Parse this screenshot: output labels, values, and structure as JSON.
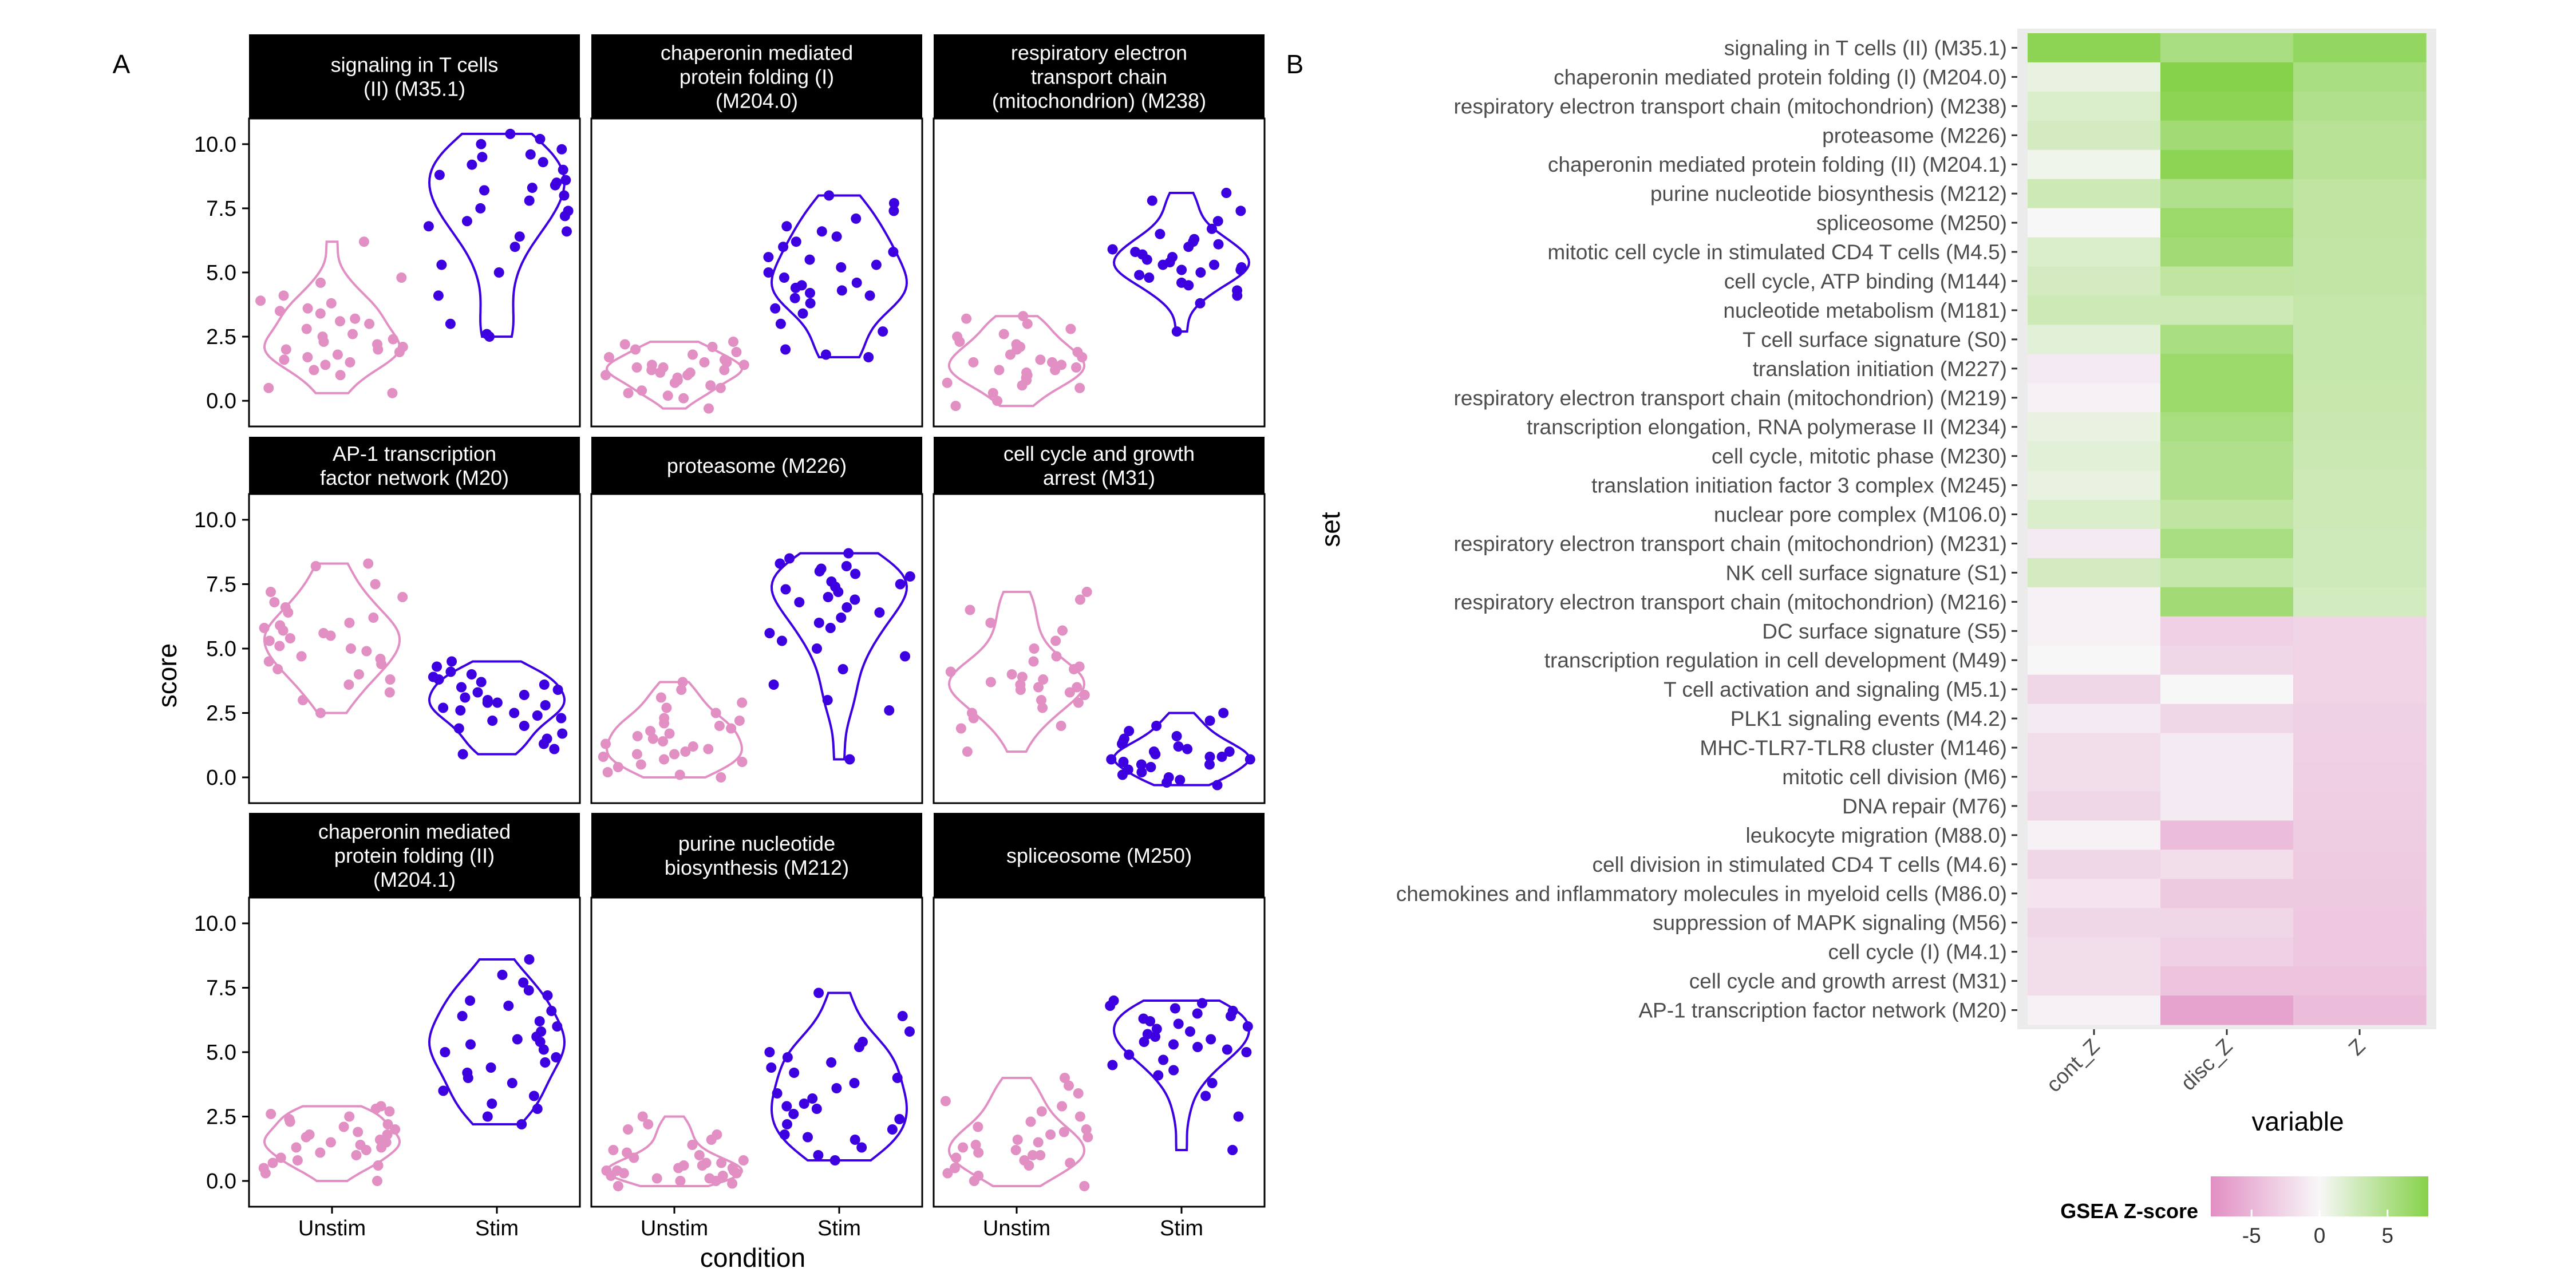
{
  "panel_labels": {
    "a": "A",
    "b": "B"
  },
  "colors": {
    "unstim": "#e28fc4",
    "stim": "#3d00e0",
    "heat_low": "#e28fc4",
    "heat_mid": "#f7f7f7",
    "heat_high": "#86d24a",
    "strip_bg": "#000000",
    "strip_text": "#ffffff",
    "heat_panel_bg": "#ebebeb"
  },
  "chart_data": [
    {
      "type": "violin-strip",
      "ylabel": "score",
      "xlabel": "condition",
      "categories": [
        "Unstim",
        "Stim"
      ],
      "ylim": [
        -1.0,
        11.0
      ],
      "yticks": [
        "0.0",
        "2.5",
        "5.0",
        "7.5",
        "10.0"
      ],
      "ytick_values": [
        0,
        2.5,
        5,
        7.5,
        10
      ],
      "facets": [
        {
          "title_lines": [
            "signaling in T cells",
            "(II) (M35.1)"
          ],
          "series": [
            {
              "name": "Unstim",
              "values": [
                0.3,
                0.5,
                1.0,
                1.2,
                1.4,
                1.5,
                1.6,
                1.7,
                1.8,
                1.9,
                2.0,
                2.0,
                2.1,
                2.2,
                2.3,
                2.4,
                2.5,
                2.6,
                2.8,
                3.0,
                3.1,
                3.2,
                3.4,
                3.5,
                3.6,
                3.8,
                3.9,
                4.1,
                4.6,
                4.8,
                6.2
              ]
            },
            {
              "name": "Stim",
              "values": [
                2.5,
                2.6,
                3.0,
                4.1,
                5.0,
                5.3,
                6.0,
                6.4,
                6.6,
                7.0,
                7.2,
                7.5,
                7.8,
                8.0,
                8.2,
                8.4,
                8.5,
                8.6,
                8.8,
                9.0,
                9.2,
                9.3,
                9.5,
                9.6,
                9.8,
                10.0,
                10.2,
                10.4,
                7.4,
                8.3,
                6.8
              ]
            }
          ]
        },
        {
          "title_lines": [
            "chaperonin mediated",
            "protein folding (I)",
            "(M204.0)"
          ],
          "series": [
            {
              "name": "Unstim",
              "values": [
                -0.3,
                0.1,
                0.2,
                0.4,
                0.5,
                0.6,
                0.7,
                0.8,
                0.9,
                1.0,
                1.0,
                1.1,
                1.1,
                1.2,
                1.2,
                1.3,
                1.3,
                1.4,
                1.5,
                1.5,
                1.6,
                1.7,
                1.8,
                1.9,
                2.0,
                2.1,
                2.2,
                2.3,
                0.3,
                1.4
              ]
            },
            {
              "name": "Stim",
              "values": [
                1.7,
                1.8,
                2.0,
                2.7,
                3.0,
                3.4,
                3.6,
                3.8,
                4.0,
                4.1,
                4.2,
                4.3,
                4.4,
                4.5,
                4.6,
                4.8,
                5.0,
                5.2,
                5.3,
                5.5,
                5.6,
                5.8,
                6.0,
                6.2,
                6.4,
                6.6,
                6.8,
                7.1,
                7.4,
                7.7,
                8.0
              ]
            }
          ]
        },
        {
          "title_lines": [
            "respiratory electron",
            "transport chain",
            "(mitochondrion) (M238)"
          ],
          "series": [
            {
              "name": "Unstim",
              "values": [
                -0.2,
                0.0,
                0.3,
                0.5,
                0.6,
                0.8,
                0.9,
                1.0,
                1.1,
                1.2,
                1.3,
                1.4,
                1.5,
                1.5,
                1.6,
                1.7,
                1.8,
                1.9,
                2.0,
                2.1,
                2.2,
                2.3,
                2.5,
                2.6,
                2.8,
                3.0,
                3.2,
                3.3,
                1.2,
                0.7
              ]
            },
            {
              "name": "Stim",
              "values": [
                2.7,
                3.8,
                4.1,
                4.3,
                4.5,
                4.6,
                4.8,
                4.9,
                5.0,
                5.1,
                5.2,
                5.3,
                5.3,
                5.4,
                5.5,
                5.6,
                5.7,
                5.8,
                5.9,
                6.0,
                6.1,
                6.2,
                6.3,
                6.5,
                6.7,
                7.0,
                7.4,
                7.8,
                8.1,
                5.1
              ]
            }
          ]
        },
        {
          "title_lines": [
            "AP-1 transcription",
            "factor network (M20)"
          ],
          "series": [
            {
              "name": "Unstim",
              "values": [
                2.5,
                3.0,
                3.3,
                3.6,
                3.8,
                4.0,
                4.2,
                4.4,
                4.5,
                4.7,
                4.9,
                5.0,
                5.1,
                5.3,
                5.4,
                5.5,
                5.6,
                5.7,
                5.8,
                5.9,
                6.0,
                6.2,
                6.4,
                6.6,
                6.8,
                7.0,
                7.2,
                7.5,
                8.2,
                8.3,
                4.6
              ]
            },
            {
              "name": "Stim",
              "values": [
                0.9,
                1.1,
                1.3,
                1.5,
                1.7,
                1.9,
                2.0,
                2.2,
                2.3,
                2.4,
                2.5,
                2.6,
                2.7,
                2.8,
                2.9,
                3.0,
                3.1,
                3.2,
                3.3,
                3.4,
                3.5,
                3.6,
                3.7,
                3.8,
                3.9,
                4.0,
                4.1,
                4.3,
                4.5,
                2.9
              ]
            }
          ]
        },
        {
          "title_lines": [
            "proteasome (M226)"
          ],
          "series": [
            {
              "name": "Unstim",
              "values": [
                0.0,
                0.1,
                0.2,
                0.4,
                0.5,
                0.6,
                0.7,
                0.8,
                0.9,
                1.0,
                1.1,
                1.2,
                1.3,
                1.4,
                1.5,
                1.6,
                1.7,
                1.8,
                1.9,
                2.0,
                2.1,
                2.2,
                2.3,
                2.5,
                2.7,
                2.9,
                3.1,
                3.4,
                3.7,
                0.9
              ]
            },
            {
              "name": "Stim",
              "values": [
                0.7,
                2.6,
                3.0,
                3.6,
                4.2,
                4.7,
                5.0,
                5.3,
                5.6,
                5.8,
                6.0,
                6.2,
                6.4,
                6.6,
                6.8,
                7.0,
                7.2,
                7.3,
                7.5,
                7.6,
                7.8,
                7.9,
                8.0,
                8.1,
                8.2,
                8.3,
                8.5,
                8.7,
                6.9,
                7.4
              ]
            }
          ]
        },
        {
          "title_lines": [
            "cell cycle and growth",
            "arrest (M31)"
          ],
          "series": [
            {
              "name": "Unstim",
              "values": [
                1.0,
                1.9,
                2.0,
                2.3,
                2.5,
                2.7,
                2.9,
                3.0,
                3.2,
                3.3,
                3.4,
                3.5,
                3.6,
                3.7,
                3.8,
                3.9,
                4.0,
                4.1,
                4.2,
                4.3,
                4.5,
                4.7,
                5.0,
                5.3,
                5.7,
                6.0,
                6.5,
                6.9,
                7.2,
                3.5
              ]
            },
            {
              "name": "Stim",
              "values": [
                -0.3,
                -0.2,
                -0.1,
                0.0,
                0.1,
                0.2,
                0.3,
                0.4,
                0.5,
                0.6,
                0.7,
                0.7,
                0.8,
                0.9,
                1.0,
                1.0,
                1.1,
                1.2,
                1.3,
                1.4,
                1.5,
                1.6,
                1.8,
                2.0,
                2.2,
                2.5,
                0.5,
                0.8
              ]
            }
          ]
        },
        {
          "title_lines": [
            "chaperonin mediated",
            "protein folding (II)",
            "(M204.1)"
          ],
          "series": [
            {
              "name": "Unstim",
              "values": [
                0.0,
                0.3,
                0.5,
                0.6,
                0.7,
                0.8,
                0.9,
                1.0,
                1.1,
                1.2,
                1.3,
                1.4,
                1.5,
                1.5,
                1.6,
                1.7,
                1.8,
                1.9,
                2.0,
                2.1,
                2.2,
                2.3,
                2.4,
                2.5,
                2.6,
                2.7,
                2.8,
                2.9,
                1.3,
                1.8
              ]
            },
            {
              "name": "Stim",
              "values": [
                2.2,
                2.5,
                2.8,
                3.0,
                3.3,
                3.5,
                3.8,
                4.0,
                4.2,
                4.4,
                4.6,
                4.8,
                5.0,
                5.1,
                5.3,
                5.5,
                5.6,
                5.8,
                6.0,
                6.2,
                6.4,
                6.6,
                6.8,
                7.0,
                7.2,
                7.4,
                7.7,
                8.0,
                8.6,
                5.4
              ]
            }
          ]
        },
        {
          "title_lines": [
            "purine nucleotide",
            "biosynthesis (M212)"
          ],
          "series": [
            {
              "name": "Unstim",
              "values": [
                -0.2,
                -0.1,
                0.0,
                0.0,
                0.1,
                0.1,
                0.2,
                0.2,
                0.3,
                0.3,
                0.4,
                0.4,
                0.5,
                0.5,
                0.6,
                0.6,
                0.7,
                0.7,
                0.8,
                0.9,
                1.0,
                1.1,
                1.2,
                1.4,
                1.6,
                1.8,
                2.0,
                2.2,
                2.5,
                0.4
              ]
            },
            {
              "name": "Stim",
              "values": [
                0.8,
                1.0,
                1.3,
                1.6,
                1.8,
                2.0,
                2.2,
                2.4,
                2.6,
                2.8,
                3.0,
                3.2,
                3.4,
                3.6,
                3.8,
                4.0,
                4.2,
                4.4,
                4.6,
                4.8,
                5.0,
                5.2,
                5.4,
                5.8,
                6.4,
                7.3,
                1.7,
                2.9
              ]
            }
          ]
        },
        {
          "title_lines": [
            "spliceosome (M250)"
          ],
          "series": [
            {
              "name": "Unstim",
              "values": [
                -0.2,
                0.0,
                0.2,
                0.3,
                0.5,
                0.6,
                0.7,
                0.8,
                0.9,
                1.0,
                1.1,
                1.2,
                1.3,
                1.4,
                1.5,
                1.6,
                1.7,
                1.8,
                1.9,
                2.0,
                2.1,
                2.3,
                2.5,
                2.7,
                2.9,
                3.1,
                3.4,
                3.7,
                4.0,
                1.0
              ]
            },
            {
              "name": "Stim",
              "values": [
                1.2,
                2.5,
                3.3,
                3.8,
                4.1,
                4.3,
                4.5,
                4.7,
                4.9,
                5.0,
                5.1,
                5.2,
                5.3,
                5.4,
                5.5,
                5.6,
                5.7,
                5.8,
                5.9,
                6.0,
                6.1,
                6.2,
                6.3,
                6.4,
                6.5,
                6.6,
                6.7,
                6.8,
                6.9,
                7.0
              ]
            }
          ]
        }
      ]
    },
    {
      "type": "heatmap",
      "ylabel": "set",
      "xlabel": "variable",
      "x": [
        "cont_Z",
        "disc_Z",
        "Z"
      ],
      "y": [
        "signaling in T cells (II) (M35.1)",
        "chaperonin mediated protein folding (I) (M204.0)",
        "respiratory electron transport chain (mitochondrion) (M238)",
        "proteasome (M226)",
        "chaperonin mediated protein folding (II) (M204.1)",
        "purine nucleotide biosynthesis (M212)",
        "spliceosome (M250)",
        "mitotic cell cycle in stimulated CD4 T cells (M4.5)",
        "cell cycle, ATP binding (M144)",
        "nucleotide metabolism (M181)",
        "T cell surface signature (S0)",
        "translation initiation (M227)",
        "respiratory electron transport chain (mitochondrion) (M219)",
        "transcription elongation, RNA polymerase II (M234)",
        "cell cycle, mitotic phase (M230)",
        "translation initiation factor 3 complex (M245)",
        "nuclear pore complex (M106.0)",
        "respiratory electron transport chain (mitochondrion) (M231)",
        "NK cell surface signature (S1)",
        "respiratory electron transport chain (mitochondrion) (M216)",
        "DC surface signature (S5)",
        "transcription regulation in cell development (M49)",
        "T cell activation and signaling (M5.1)",
        "PLK1 signaling events (M4.2)",
        "MHC-TLR7-TLR8 cluster (M146)",
        "mitotic cell division (M6)",
        "DNA repair (M76)",
        "leukocyte migration (M88.0)",
        "cell division in stimulated CD4 T cells (M4.6)",
        "chemokines and inflammatory molecules in myeloid cells (M86.0)",
        "suppression of MAPK signaling (M56)",
        "cell cycle (I) (M4.1)",
        "cell cycle and growth arrest (M31)",
        "AP-1 transcription factor network (M20)"
      ],
      "values": [
        [
          7.5,
          5.5,
          7.0
        ],
        [
          1.0,
          8.0,
          5.5
        ],
        [
          2.0,
          7.5,
          5.0
        ],
        [
          2.5,
          6.0,
          4.5
        ],
        [
          0.5,
          7.5,
          4.5
        ],
        [
          3.0,
          5.0,
          4.0
        ],
        [
          0.0,
          6.5,
          4.0
        ],
        [
          2.0,
          6.0,
          3.8
        ],
        [
          2.5,
          4.0,
          3.8
        ],
        [
          3.0,
          3.0,
          3.6
        ],
        [
          1.5,
          5.5,
          3.5
        ],
        [
          -1.0,
          6.5,
          3.5
        ],
        [
          -0.5,
          6.5,
          3.4
        ],
        [
          1.0,
          5.5,
          3.3
        ],
        [
          1.5,
          5.0,
          3.2
        ],
        [
          1.0,
          5.0,
          3.0
        ],
        [
          2.0,
          4.0,
          3.0
        ],
        [
          -1.0,
          5.5,
          2.8
        ],
        [
          2.5,
          3.5,
          2.8
        ],
        [
          -0.5,
          6.0,
          2.6
        ],
        [
          -0.5,
          -3.0,
          -2.6
        ],
        [
          0.0,
          -2.5,
          -2.7
        ],
        [
          -2.5,
          0.0,
          -2.8
        ],
        [
          -1.0,
          -2.5,
          -2.9
        ],
        [
          -2.0,
          -1.0,
          -3.0
        ],
        [
          -2.0,
          -1.0,
          -3.1
        ],
        [
          -2.5,
          -1.0,
          -3.2
        ],
        [
          -0.5,
          -4.5,
          -3.3
        ],
        [
          -2.5,
          -2.0,
          -3.4
        ],
        [
          -1.5,
          -3.5,
          -3.5
        ],
        [
          -2.5,
          -2.5,
          -3.6
        ],
        [
          -2.0,
          -3.0,
          -3.8
        ],
        [
          -2.0,
          -4.0,
          -4.0
        ],
        [
          -0.5,
          -6.5,
          -4.5
        ]
      ],
      "colorbar": {
        "title": "GSEA Z-score",
        "ticks": [
          "-5",
          "0",
          "5"
        ],
        "tick_values": [
          -5,
          0,
          5
        ],
        "range": [
          -8,
          8
        ]
      }
    }
  ]
}
